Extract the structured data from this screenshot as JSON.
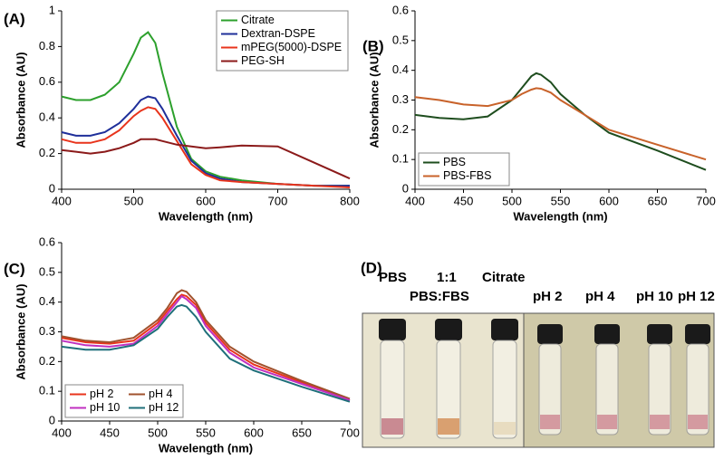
{
  "chart_data": [
    {
      "type": "line",
      "panel_label": "(A)",
      "x_label": "Wavelength (nm)",
      "y_label": "Absorbance (AU)",
      "x": [
        400,
        420,
        440,
        460,
        480,
        500,
        510,
        520,
        530,
        540,
        560,
        580,
        600,
        620,
        650,
        700,
        750,
        800
      ],
      "series": [
        {
          "name": "Citrate",
          "color": "#2ca02c",
          "values": [
            0.52,
            0.5,
            0.5,
            0.53,
            0.6,
            0.76,
            0.85,
            0.88,
            0.82,
            0.65,
            0.35,
            0.17,
            0.1,
            0.07,
            0.05,
            0.03,
            0.02,
            0.02
          ]
        },
        {
          "name": "Dextran-DSPE",
          "color": "#1f2f9a",
          "values": [
            0.32,
            0.3,
            0.3,
            0.32,
            0.37,
            0.45,
            0.5,
            0.52,
            0.51,
            0.45,
            0.3,
            0.16,
            0.09,
            0.06,
            0.04,
            0.03,
            0.02,
            0.02
          ]
        },
        {
          "name": "mPEG(5000)-DSPE",
          "color": "#e8341c",
          "values": [
            0.28,
            0.26,
            0.26,
            0.28,
            0.33,
            0.41,
            0.44,
            0.46,
            0.45,
            0.4,
            0.27,
            0.14,
            0.08,
            0.05,
            0.04,
            0.03,
            0.02,
            0.01
          ]
        },
        {
          "name": "PEG-SH",
          "color": "#8b1a1a",
          "values": [
            0.22,
            0.21,
            0.2,
            0.21,
            0.23,
            0.26,
            0.28,
            0.28,
            0.28,
            0.27,
            0.25,
            0.24,
            0.23,
            0.235,
            0.245,
            0.24,
            0.15,
            0.06
          ]
        }
      ],
      "xlim": [
        400,
        800
      ],
      "xticks": [
        400,
        500,
        600,
        700,
        800
      ],
      "ylim": [
        0,
        1
      ],
      "yticks": [
        0,
        0.2,
        0.4,
        0.6,
        0.8,
        1
      ],
      "legend": "upper right"
    },
    {
      "type": "line",
      "panel_label": "(B)",
      "x_label": "Wavelength (nm)",
      "y_label": "Absorbance (AU)",
      "x": [
        400,
        425,
        450,
        475,
        500,
        510,
        520,
        525,
        530,
        540,
        550,
        575,
        600,
        650,
        700
      ],
      "series": [
        {
          "name": "PBS",
          "color": "#1e4d1e",
          "values": [
            0.25,
            0.24,
            0.235,
            0.245,
            0.3,
            0.34,
            0.38,
            0.39,
            0.385,
            0.36,
            0.32,
            0.25,
            0.19,
            0.13,
            0.065
          ]
        },
        {
          "name": "PBS-FBS",
          "color": "#c8622a",
          "values": [
            0.31,
            0.3,
            0.285,
            0.28,
            0.3,
            0.32,
            0.335,
            0.34,
            0.338,
            0.325,
            0.3,
            0.25,
            0.2,
            0.15,
            0.1
          ]
        }
      ],
      "xlim": [
        400,
        700
      ],
      "xticks": [
        400,
        450,
        500,
        550,
        600,
        650,
        700
      ],
      "ylim": [
        0,
        0.6
      ],
      "yticks": [
        0,
        0.1,
        0.2,
        0.3,
        0.4,
        0.5,
        0.6
      ],
      "legend": "lower left"
    },
    {
      "type": "line",
      "panel_label": "(C)",
      "x_label": "Wavelength (nm)",
      "y_label": "Absorbance (AU)",
      "x": [
        400,
        425,
        450,
        475,
        500,
        510,
        520,
        525,
        530,
        540,
        550,
        575,
        600,
        650,
        700
      ],
      "series": [
        {
          "name": "pH 2",
          "color": "#e8341c",
          "values": [
            0.28,
            0.265,
            0.26,
            0.27,
            0.33,
            0.37,
            0.41,
            0.425,
            0.42,
            0.39,
            0.33,
            0.24,
            0.19,
            0.13,
            0.07
          ]
        },
        {
          "name": "pH 4",
          "color": "#a0522d",
          "values": [
            0.285,
            0.27,
            0.265,
            0.28,
            0.34,
            0.38,
            0.43,
            0.44,
            0.435,
            0.4,
            0.34,
            0.25,
            0.2,
            0.135,
            0.075
          ]
        },
        {
          "name": "pH 10",
          "color": "#c030c0",
          "values": [
            0.27,
            0.255,
            0.25,
            0.26,
            0.32,
            0.36,
            0.4,
            0.42,
            0.41,
            0.38,
            0.32,
            0.23,
            0.18,
            0.125,
            0.07
          ]
        },
        {
          "name": "pH 12",
          "color": "#1f6f7a",
          "values": [
            0.25,
            0.24,
            0.24,
            0.255,
            0.31,
            0.35,
            0.385,
            0.39,
            0.385,
            0.35,
            0.3,
            0.21,
            0.17,
            0.115,
            0.065
          ]
        }
      ],
      "xlim": [
        400,
        700
      ],
      "xticks": [
        400,
        450,
        500,
        550,
        600,
        650,
        700
      ],
      "ylim": [
        0,
        0.6
      ],
      "yticks": [
        0,
        0.1,
        0.2,
        0.3,
        0.4,
        0.5,
        0.6
      ],
      "legend": "lower left"
    }
  ],
  "photo_panel": {
    "panel_label": "(D)",
    "labels": [
      "PBS",
      "1:1",
      "Citrate",
      "PBS:FBS",
      "pH 2",
      "pH 4",
      "pH 10",
      "pH 12"
    ]
  }
}
